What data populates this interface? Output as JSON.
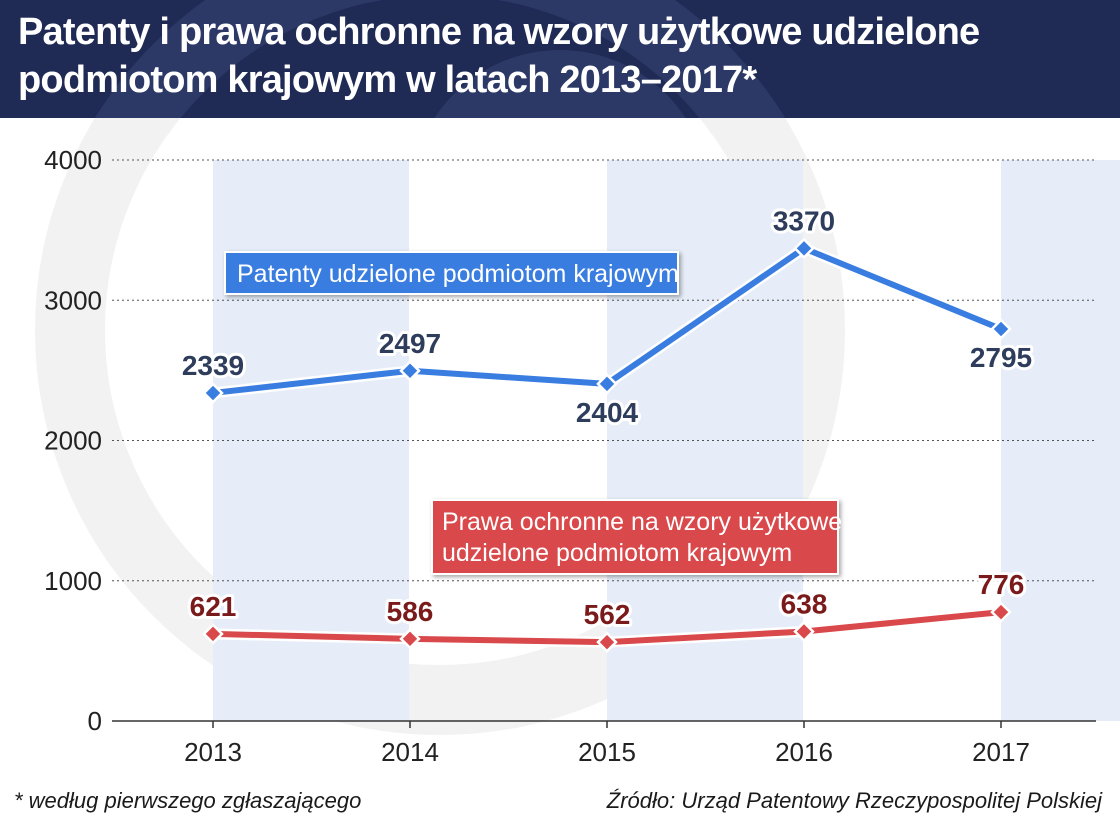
{
  "header": {
    "title_line1": "Patenty i prawa ochronne na wzory użytkowe udzielone",
    "title_line2": "podmiotom krajowym w latach 2013–2017*"
  },
  "footer": {
    "note": "* według pierwszego zgłaszającego",
    "source": "Źródło: Urząd Patentowy Rzeczypospolitej Polskiej"
  },
  "colors": {
    "header_bg": "#1f2a55",
    "band": "#e6edf8",
    "series_blue": "#3a7de0",
    "series_red": "#d9484a",
    "grid": "#555555"
  },
  "chart_data": {
    "type": "line",
    "categories": [
      "2013",
      "2014",
      "2015",
      "2016",
      "2017"
    ],
    "ylim": [
      0,
      4000
    ],
    "yticks": [
      0,
      1000,
      2000,
      3000,
      4000
    ],
    "grid": "horizontal-dotted",
    "series": [
      {
        "name": "Patenty udzielone podmiotom krajowym",
        "values": [
          2339,
          2497,
          2404,
          3370,
          2795
        ],
        "labels": [
          "2339",
          "2497",
          "2404",
          "3370",
          "2795"
        ],
        "label_side": [
          "above",
          "above",
          "below",
          "above",
          "below"
        ]
      },
      {
        "name_line1": "Prawa ochronne na wzory użytkowe",
        "name_line2": "udzielone podmiotom krajowym",
        "values": [
          621,
          586,
          562,
          638,
          776
        ],
        "labels": [
          "621",
          "586",
          "562",
          "638",
          "776"
        ],
        "label_side": [
          "above",
          "above",
          "above",
          "above",
          "above"
        ]
      }
    ]
  }
}
